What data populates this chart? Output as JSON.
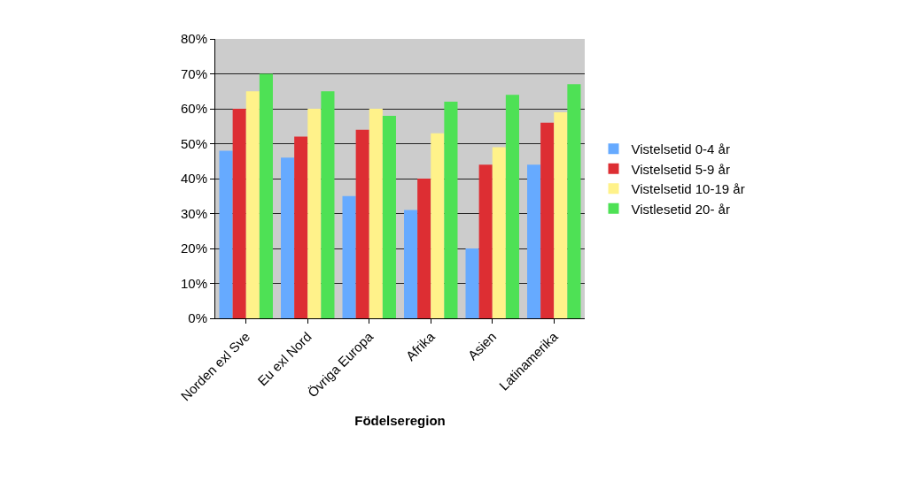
{
  "chart_data": {
    "type": "bar",
    "xlabel": "Födelseregion",
    "categories": [
      "Norden exl Sve",
      "Eu exl Nord",
      "Övriga Europa",
      "Afrika",
      "Asien",
      "Latinamerika"
    ],
    "series": [
      {
        "name": "Vistelsetid 0-4 år",
        "color": "#66aaff",
        "values": [
          48,
          46,
          35,
          31,
          20,
          44
        ]
      },
      {
        "name": "Vistelsetid 5-9 år",
        "color": "#dd2e33",
        "values": [
          60,
          52,
          54,
          40,
          44,
          56
        ]
      },
      {
        "name": "Vistelsetid 10-19 år",
        "color": "#fff28a",
        "values": [
          65,
          60,
          60,
          53,
          49,
          59
        ]
      },
      {
        "name": "Vistlesetid 20- år",
        "color": "#4ee155",
        "values": [
          70,
          65,
          58,
          62,
          64,
          67
        ]
      }
    ],
    "ylim": [
      0,
      80
    ],
    "yticks": [
      {
        "value": 0,
        "label": "0%"
      },
      {
        "value": 10,
        "label": "10%"
      },
      {
        "value": 20,
        "label": "20%"
      },
      {
        "value": 30,
        "label": "30%"
      },
      {
        "value": 40,
        "label": "40%"
      },
      {
        "value": 50,
        "label": "50%"
      },
      {
        "value": 60,
        "label": "60%"
      },
      {
        "value": 70,
        "label": "70%"
      },
      {
        "value": 80,
        "label": "80%"
      }
    ],
    "grid": "y",
    "legend": "right"
  }
}
